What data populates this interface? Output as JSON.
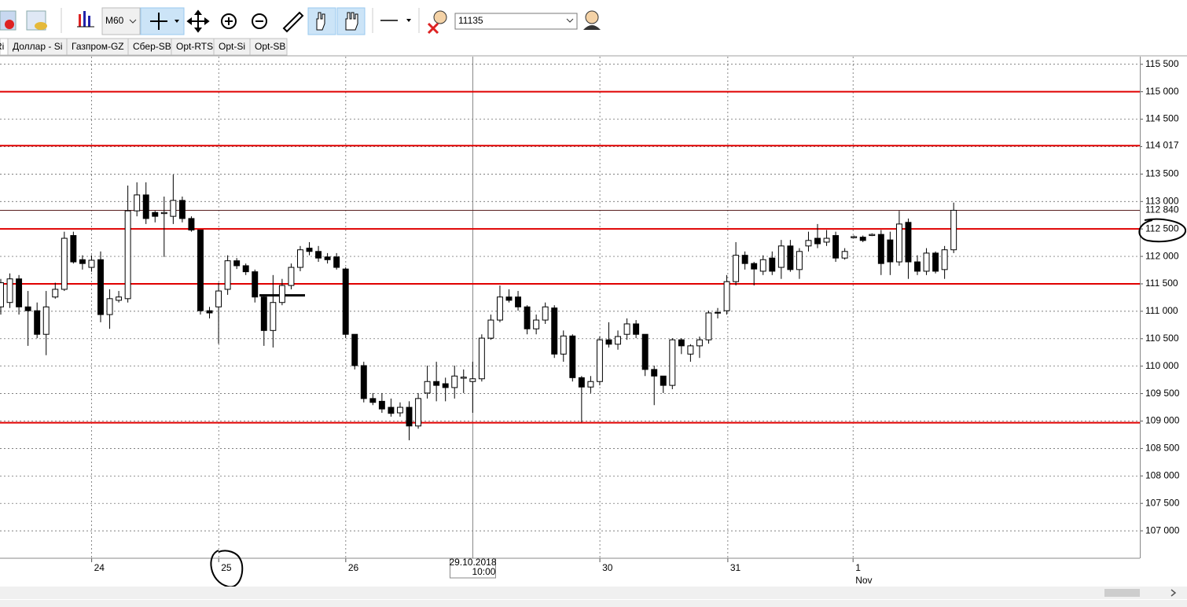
{
  "toolbar": {
    "timeframe": "M60",
    "instrument": "11135"
  },
  "tabs": [
    "Ri",
    "Доллар - Si",
    "Газпром-GZ",
    "Сбер-SB",
    "Opt-RTS",
    "Opt-Si",
    "Opt-SB"
  ],
  "chart_data": {
    "type": "candlestick",
    "categories": [
      null,
      null,
      null,
      null,
      null,
      null,
      null,
      null,
      null,
      null,
      null,
      null,
      null,
      null,
      null,
      null,
      null,
      null,
      null,
      null,
      null,
      null,
      null,
      null,
      null,
      null,
      null,
      null,
      null,
      null,
      null,
      null,
      null,
      null,
      null,
      null,
      null,
      null,
      null,
      null,
      null,
      null,
      null,
      null,
      null,
      null,
      null,
      null,
      null,
      null,
      null,
      null,
      null,
      null,
      null,
      null,
      null,
      null,
      null,
      null,
      null,
      null,
      null,
      null,
      null,
      null,
      null,
      null,
      null,
      null,
      null,
      null,
      null,
      null,
      null,
      null,
      null,
      null,
      null,
      null,
      null,
      null,
      null,
      null,
      null,
      null,
      null,
      null,
      null,
      null,
      null,
      null,
      null,
      null,
      null,
      null,
      null,
      null,
      null,
      null,
      null,
      null,
      null,
      null,
      null,
      null
    ],
    "open": [
      111080,
      111160,
      111590,
      111080,
      111010,
      110580,
      111260,
      111400,
      112380,
      111940,
      111800,
      111940,
      110940,
      111200,
      111230,
      112830,
      113120,
      112800,
      112780,
      112730,
      113020,
      112690,
      112480,
      111010,
      111080,
      111400,
      111920,
      111830,
      111720,
      111260,
      110650,
      111160,
      111470,
      111800,
      112150,
      112090,
      111990,
      111990,
      111770,
      110580,
      110010,
      109410,
      109360,
      109250,
      109150,
      109250,
      108910,
      109510,
      109720,
      109680,
      109610,
      109780,
      109720,
      109770,
      110510,
      110840,
      111260,
      111260,
      111080,
      110680,
      110840,
      111060,
      110220,
      110550,
      109790,
      109620,
      109720,
      110480,
      110400,
      110580,
      110770,
      110580,
      109940,
      109820,
      109650,
      110480,
      110220,
      110370,
      110480,
      110970,
      111010,
      111540,
      112020,
      111870,
      111730,
      111970,
      111800,
      112190,
      111760,
      112190,
      112330,
      112260,
      112380,
      111970,
      112340,
      112350,
      112380,
      112400,
      112300,
      111900,
      112620,
      111900,
      111730,
      112060,
      111760,
      112120
    ],
    "high": [
      111590,
      111690,
      111660,
      111370,
      111160,
      111370,
      111520,
      112450,
      112450,
      112020,
      112020,
      112090,
      111400,
      111370,
      113290,
      113350,
      113350,
      112830,
      113090,
      113490,
      113090,
      112730,
      112480,
      111080,
      111520,
      112020,
      111970,
      111870,
      111760,
      111300,
      111660,
      111590,
      111870,
      112190,
      112260,
      112190,
      112060,
      112060,
      111800,
      110580,
      110080,
      109510,
      109510,
      109410,
      109340,
      109360,
      109510,
      110010,
      110080,
      109790,
      110010,
      109940,
      110080,
      110580,
      110940,
      111470,
      111400,
      111370,
      111110,
      110940,
      111160,
      111110,
      110650,
      110580,
      109820,
      109820,
      110540,
      110800,
      110650,
      110870,
      110840,
      110580,
      110010,
      109820,
      110510,
      110510,
      110400,
      110540,
      111010,
      111060,
      111660,
      112260,
      112090,
      111900,
      112020,
      112090,
      112300,
      112300,
      112150,
      112450,
      112590,
      112480,
      112450,
      112150,
      112380,
      112380,
      112420,
      112480,
      112450,
      112830,
      112690,
      112020,
      112150,
      112090,
      112190,
      112980
    ],
    "low": [
      110940,
      111060,
      110940,
      110370,
      110510,
      110200,
      111230,
      111370,
      111870,
      111760,
      111720,
      110800,
      110680,
      111160,
      111160,
      112730,
      112590,
      112620,
      111990,
      112590,
      112620,
      112450,
      110940,
      110870,
      110410,
      111300,
      111770,
      111660,
      111160,
      110370,
      110340,
      111110,
      111400,
      111730,
      112020,
      111900,
      111870,
      111760,
      110510,
      109940,
      109340,
      109290,
      109150,
      109080,
      109080,
      108650,
      108860,
      109410,
      109360,
      109360,
      109410,
      109510,
      109150,
      109720,
      110480,
      110800,
      111160,
      111010,
      110580,
      110580,
      110770,
      110150,
      110080,
      109720,
      108980,
      109510,
      109650,
      110340,
      110300,
      110480,
      110510,
      109820,
      109290,
      109510,
      109580,
      110220,
      110080,
      110150,
      110410,
      110870,
      110940,
      111470,
      111760,
      111470,
      111660,
      111660,
      111590,
      111720,
      111590,
      112090,
      112150,
      112190,
      111900,
      111940,
      112330,
      112260,
      112370,
      111660,
      111660,
      111830,
      111590,
      111660,
      111660,
      111690,
      111590,
      112060
    ],
    "close": [
      111520,
      111590,
      111080,
      111010,
      110580,
      111080,
      111400,
      112330,
      111900,
      111870,
      111930,
      110940,
      111230,
      111260,
      112830,
      113120,
      112690,
      112730,
      112800,
      113020,
      112690,
      112480,
      111010,
      110970,
      111370,
      111920,
      111830,
      111720,
      111260,
      110650,
      111160,
      111470,
      111800,
      112120,
      112090,
      111970,
      111940,
      111800,
      110580,
      110010,
      109410,
      109340,
      109220,
      109140,
      109250,
      108910,
      109410,
      109720,
      109650,
      109610,
      109820,
      109800,
      109770,
      110510,
      110840,
      111260,
      111200,
      111080,
      110680,
      110840,
      111080,
      110220,
      110550,
      109790,
      109620,
      109720,
      110480,
      110400,
      110540,
      110770,
      110580,
      109940,
      109820,
      109650,
      110480,
      110370,
      110370,
      110480,
      110970,
      110980,
      111540,
      112020,
      111870,
      111770,
      111940,
      111730,
      112190,
      111760,
      112090,
      112290,
      112230,
      112330,
      111970,
      112090,
      112360,
      112290,
      112400,
      111870,
      111900,
      112590,
      111900,
      111730,
      112060,
      111730,
      112120,
      112840
    ],
    "up_color": "#ffffff",
    "down_color": "#000000",
    "xlim": [
      0,
      125.6
    ],
    "xticks": [
      {
        "value": 10.1,
        "label": "24"
      },
      {
        "value": 24.1,
        "label": "25"
      },
      {
        "value": 38.1,
        "label": "26"
      },
      {
        "value": 66.1,
        "label": "30"
      },
      {
        "value": 80.2,
        "label": "31"
      },
      {
        "value": 94.0,
        "label": "1"
      }
    ],
    "month_label": "Nov",
    "crosshair": {
      "x": 52.1,
      "date": "29.10.2018",
      "time": "10:00"
    },
    "ylim": [
      106500,
      115640
    ],
    "yticks": [
      {
        "value": 107000,
        "label": "107 000"
      },
      {
        "value": 107500,
        "label": "107 500"
      },
      {
        "value": 108000,
        "label": "108 000"
      },
      {
        "value": 108500,
        "label": "108 500"
      },
      {
        "value": 109000,
        "label": "109 000"
      },
      {
        "value": 109500,
        "label": "109 500"
      },
      {
        "value": 110000,
        "label": "110 000"
      },
      {
        "value": 110500,
        "label": "110 500"
      },
      {
        "value": 111000,
        "label": "111 000"
      },
      {
        "value": 111500,
        "label": "111 500"
      },
      {
        "value": 112000,
        "label": "112 000"
      },
      {
        "value": 112500,
        "label": "112 500"
      },
      {
        "value": 113000,
        "label": "113 000"
      },
      {
        "value": 113500,
        "label": "113 500"
      },
      {
        "value": 114000,
        "label": "114 000"
      },
      {
        "value": 114500,
        "label": "114 500"
      },
      {
        "value": 115000,
        "label": "115 000"
      },
      {
        "value": 115500,
        "label": "115 500"
      }
    ],
    "grid": true,
    "levels": [
      115000,
      114017,
      112500,
      111500,
      108970
    ],
    "level_color": "#e00000",
    "price_labels": [
      {
        "value": 114017,
        "label": "114 017"
      },
      {
        "value": 112840,
        "label": "112 840"
      }
    ],
    "last_price_color": "#5a1f1f",
    "drawn_segment": 111290
  }
}
